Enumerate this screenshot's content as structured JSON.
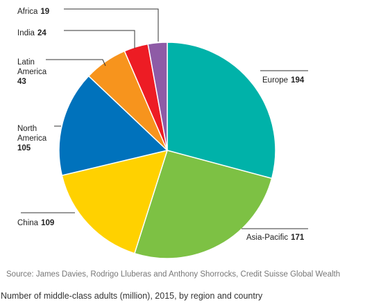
{
  "chart_data": {
    "type": "pie",
    "slices": [
      {
        "label": "Europe",
        "value": 194,
        "color": "#00b2a9"
      },
      {
        "label": "Asia-Pacific",
        "value": 171,
        "color": "#7dc144"
      },
      {
        "label": "China",
        "value": 109,
        "color": "#ffd100"
      },
      {
        "label": "North America",
        "value": 105,
        "color": "#0072bc"
      },
      {
        "label": "Latin America",
        "value": 43,
        "color": "#f7941d"
      },
      {
        "label": "India",
        "value": 24,
        "color": "#ed1c24"
      },
      {
        "label": "Africa",
        "value": 19,
        "color": "#8e5ba6"
      }
    ],
    "label_lines": {
      "europe": [
        "Europe"
      ],
      "asia_pacific": [
        "Asia-Pacific"
      ],
      "china": [
        "China"
      ],
      "north_america": [
        "North",
        "America"
      ],
      "latin_america": [
        "Latin",
        "America"
      ],
      "india": [
        "India"
      ],
      "africa": [
        "Africa"
      ]
    }
  },
  "source": "Source: James Davies, Rodrigo Lluberas and Anthony Shorrocks, Credit Suisse Global Wealth",
  "caption": "Number of middle-class adults (million), 2015, by region and country"
}
